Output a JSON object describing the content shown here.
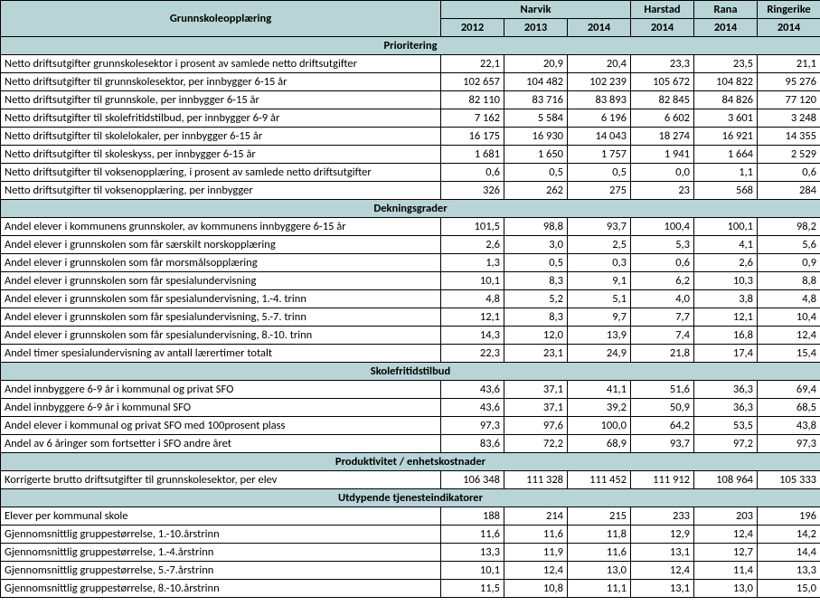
{
  "header": {
    "title": "Grunnskoleopplæring",
    "group_labels": [
      "Narvik",
      "Harstad",
      "Rana",
      "Ringerike"
    ],
    "year_labels": [
      "2012",
      "2013",
      "2014",
      "2014",
      "2014",
      "2014"
    ]
  },
  "sections": [
    {
      "title": "Prioritering",
      "rows": [
        {
          "label": "Netto driftsutgifter grunnskolesektor  i prosent av samlede netto driftsutgifter",
          "vals": [
            "22,1",
            "20,9",
            "20,4",
            "23,3",
            "23,5",
            "21,1"
          ]
        },
        {
          "label": "Netto driftsutgifter til grunnskolesektor, per innbygger 6-15 år",
          "vals": [
            "102 657",
            "104 482",
            "102 239",
            "105 672",
            "104 822",
            "95 276"
          ]
        },
        {
          "label": "Netto driftsutgifter til grunnskole, per innbygger 6-15 år",
          "vals": [
            "82 110",
            "83 716",
            "83 893",
            "82 845",
            "84 826",
            "77 120"
          ]
        },
        {
          "label": "Netto driftsutgifter til skolefritidstilbud, per innbygger 6-9 år",
          "vals": [
            "7 162",
            "5 584",
            "6 196",
            "6 602",
            "3 601",
            "3 248"
          ]
        },
        {
          "label": "Netto driftsutgifter til skolelokaler, per innbygger 6-15 år",
          "vals": [
            "16 175",
            "16 930",
            "14 043",
            "18 274",
            "16 921",
            "14 355"
          ]
        },
        {
          "label": "Netto driftsutgifter til skoleskyss, per innbygger 6-15 år",
          "vals": [
            "1 681",
            "1 650",
            "1 757",
            "1 941",
            "1 664",
            "2 529"
          ]
        },
        {
          "label": "Netto driftsutgifter til voksenopplæring, i prosent av samlede netto driftsutgifter",
          "vals": [
            "0,6",
            "0,5",
            "0,5",
            "0,0",
            "1,1",
            "0,6"
          ]
        },
        {
          "label": "Netto driftsutgifter til voksenopplæring, per innbygger",
          "vals": [
            "326",
            "262",
            "275",
            "23",
            "568",
            "284"
          ]
        }
      ]
    },
    {
      "title": "Dekningsgrader",
      "rows": [
        {
          "label": "Andel elever i kommunens grunnskoler, av kommunens innbyggere 6-15 år",
          "vals": [
            "101,5",
            "98,8",
            "93,7",
            "100,4",
            "100,1",
            "98,2"
          ]
        },
        {
          "label": "Andel elever i grunnskolen som får særskilt norskopplæring",
          "vals": [
            "2,6",
            "3,0",
            "2,5",
            "5,3",
            "4,1",
            "5,6"
          ]
        },
        {
          "label": "Andel elever i grunnskolen som får morsmålsopplæring",
          "vals": [
            "1,3",
            "0,5",
            "0,3",
            "0,6",
            "2,6",
            "0,9"
          ]
        },
        {
          "label": "Andel elever i grunnskolen som får spesialundervisning",
          "vals": [
            "10,1",
            "8,3",
            "9,1",
            "6,2",
            "10,3",
            "8,8"
          ]
        },
        {
          "label": "Andel elever i grunnskolen som får spesialundervisning, 1.-4. trinn",
          "vals": [
            "4,8",
            "5,2",
            "5,1",
            "4,0",
            "3,8",
            "4,8"
          ]
        },
        {
          "label": "Andel elever i grunnskolen som får spesialundervisning, 5.-7. trinn",
          "vals": [
            "12,1",
            "8,3",
            "9,7",
            "7,7",
            "12,1",
            "10,4"
          ]
        },
        {
          "label": "Andel elever i grunnskolen som får spesialundervisning, 8.-10. trinn",
          "vals": [
            "14,3",
            "12,0",
            "13,9",
            "7,4",
            "16,8",
            "12,4"
          ]
        },
        {
          "label": "Andel timer spesialundervisning av antall lærertimer totalt",
          "vals": [
            "22,3",
            "23,1",
            "24,9",
            "21,8",
            "17,4",
            "15,4"
          ]
        }
      ]
    },
    {
      "title": "Skolefritidstilbud",
      "rows": [
        {
          "label": "Andel innbyggere 6-9 år i kommunal og privat SFO",
          "vals": [
            "43,6",
            "37,1",
            "41,1",
            "51,6",
            "36,3",
            "69,4"
          ]
        },
        {
          "label": "Andel innbyggere 6-9 år i kommunal SFO",
          "vals": [
            "43,6",
            "37,1",
            "39,2",
            "50,9",
            "36,3",
            "68,5"
          ]
        },
        {
          "label": "Andel elever i kommunal og privat SFO med 100prosent plass",
          "vals": [
            "97,3",
            "97,6",
            "100,0",
            "64,2",
            "53,5",
            "43,8"
          ]
        },
        {
          "label": "Andel av 6 åringer som fortsetter i SFO andre året",
          "vals": [
            "83,6",
            "72,2",
            "68,9",
            "93,7",
            "97,2",
            "97,3"
          ]
        }
      ]
    },
    {
      "title": "Produktivitet / enhetskostnader",
      "rows": [
        {
          "label": "Korrigerte brutto driftsutgifter til grunnskolesektor, per elev",
          "vals": [
            "106 348",
            "111 328",
            "111 452",
            "111 912",
            "108 964",
            "105 333"
          ]
        }
      ]
    },
    {
      "title": "Utdypende tjenesteindikatorer",
      "rows": [
        {
          "label": "Elever per kommunal skole",
          "vals": [
            "188",
            "214",
            "215",
            "233",
            "203",
            "196"
          ]
        },
        {
          "label": "Gjennomsnittlig gruppestørrelse, 1.-10.årstrinn",
          "vals": [
            "11,6",
            "11,6",
            "11,8",
            "12,9",
            "12,4",
            "14,2"
          ]
        },
        {
          "label": "Gjennomsnittlig gruppestørrelse, 1.-4.årstrinn",
          "vals": [
            "13,3",
            "11,9",
            "11,6",
            "13,1",
            "12,7",
            "14,4"
          ]
        },
        {
          "label": "Gjennomsnittlig gruppestørrelse, 5.-7.årstrinn",
          "vals": [
            "10,1",
            "12,4",
            "13,0",
            "12,4",
            "11,4",
            "13,3"
          ]
        },
        {
          "label": "Gjennomsnittlig gruppestørrelse, 8.-10.årstrinn",
          "vals": [
            "11,5",
            "10,8",
            "11,1",
            "13,1",
            "13,0",
            "15,0"
          ]
        }
      ]
    }
  ]
}
